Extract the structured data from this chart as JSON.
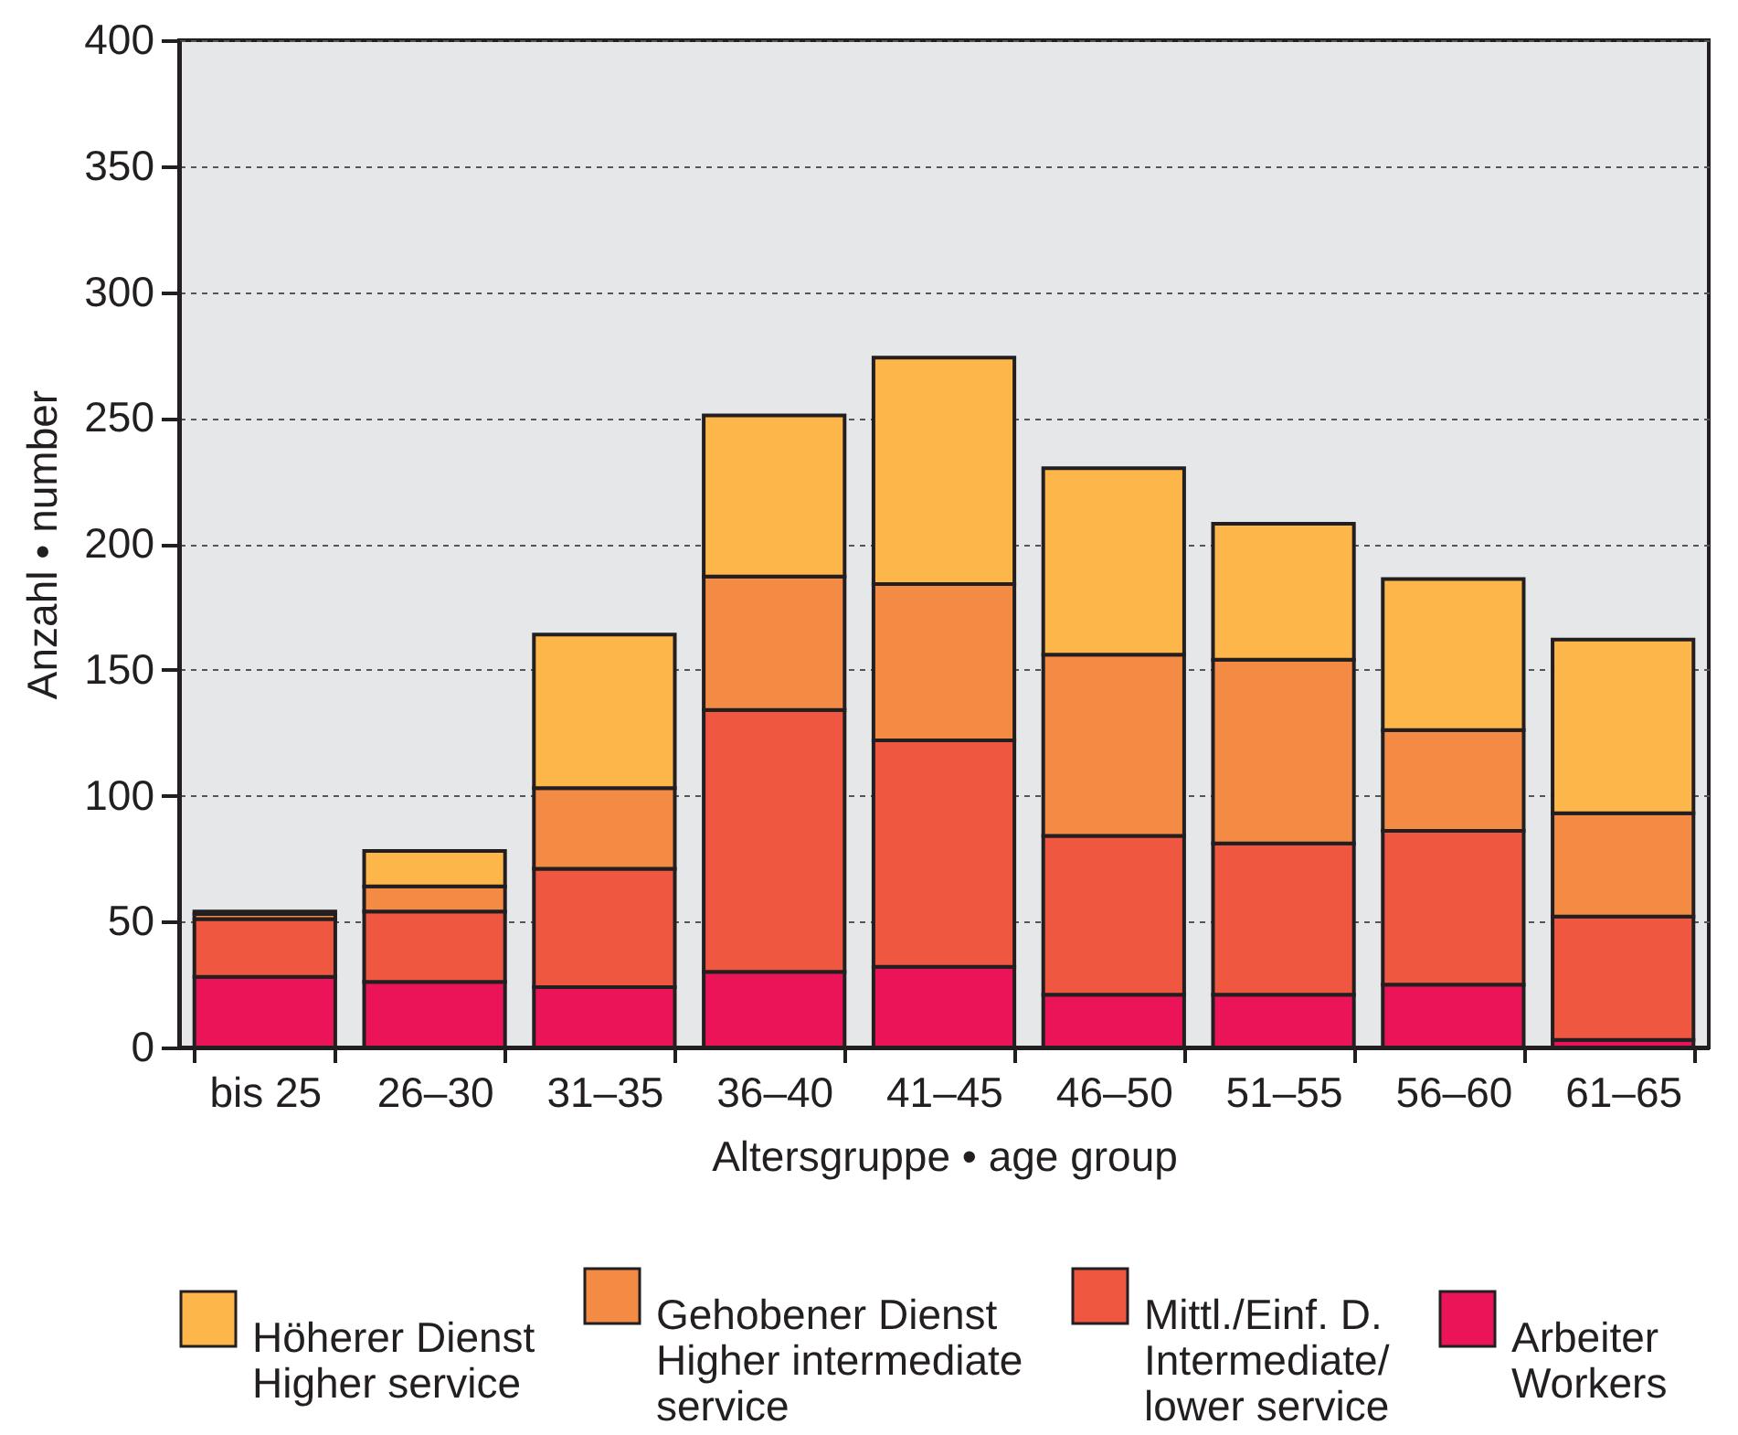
{
  "chart_data": {
    "type": "bar",
    "stacked": true,
    "xlabel": "Altersgruppe • age group",
    "ylabel": "Anzahl • number",
    "categories": [
      "bis 25",
      "26–30",
      "31–35",
      "36–40",
      "41–45",
      "46–50",
      "51–55",
      "56–60",
      "61–65"
    ],
    "series": [
      {
        "name": "Arbeiter\nWorkers",
        "color": "#ec1459",
        "values": [
          28,
          26,
          24,
          30,
          32,
          21,
          21,
          25,
          3
        ]
      },
      {
        "name": "Mittl./Einf. D.\nIntermediate/\nlower service",
        "color": "#ef5740",
        "values": [
          23,
          28,
          47,
          104,
          90,
          63,
          60,
          61,
          49
        ]
      },
      {
        "name": "Gehobener Dienst\nHigher intermediate\nservice",
        "color": "#f48b44",
        "values": [
          2,
          10,
          32,
          53,
          62,
          72,
          73,
          40,
          41
        ]
      },
      {
        "name": "Höherer Dienst\nHigher service",
        "color": "#fdb64a",
        "values": [
          1,
          14,
          61,
          64,
          90,
          74,
          54,
          60,
          69
        ]
      }
    ],
    "ylim": [
      0,
      400
    ],
    "yticks": [
      0,
      50,
      100,
      150,
      200,
      250,
      300,
      350,
      400
    ],
    "grid": "y",
    "legend": "bottom"
  }
}
